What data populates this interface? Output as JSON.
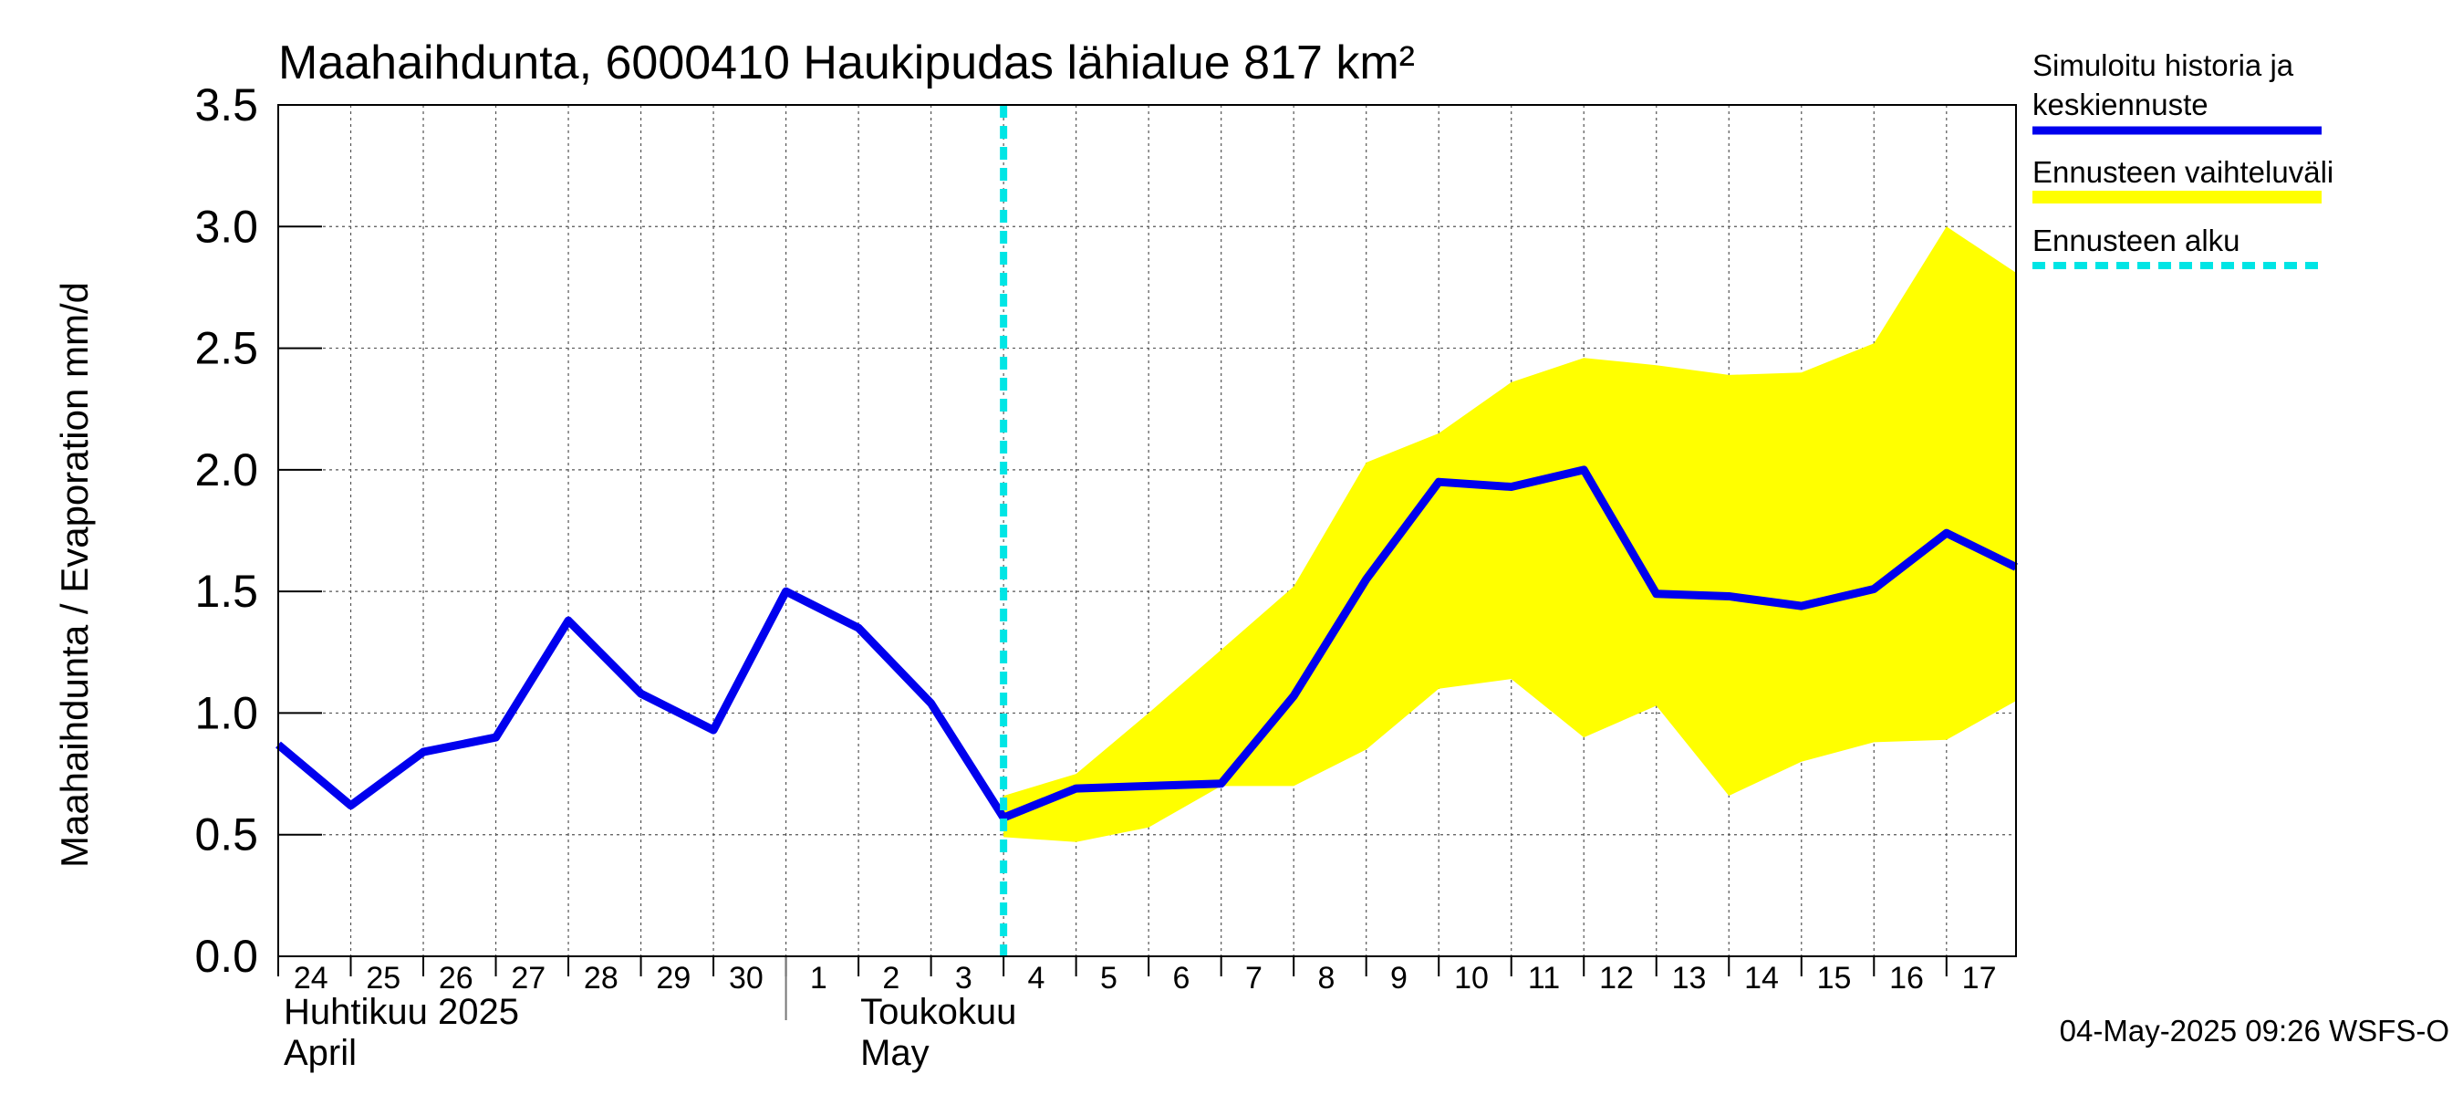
{
  "chart_data": {
    "type": "line",
    "title": "Maahaihdunta, 6000410 Haukipudas lähialue 817 km²",
    "ylabel": "Maahaihdunta / Evaporation   mm/d",
    "ylim": [
      0,
      3.5
    ],
    "yticks": [
      "0.0",
      "0.5",
      "1.0",
      "1.5",
      "2.0",
      "2.5",
      "3.0",
      "3.5"
    ],
    "grid": true,
    "legend_position": "right",
    "x_start": "2025-04-24",
    "x_end": "2025-05-17T23:00",
    "x_tick_labels": [
      "24",
      "25",
      "26",
      "27",
      "28",
      "29",
      "30",
      "1",
      "2",
      "3",
      "4",
      "5",
      "6",
      "7",
      "8",
      "9",
      "10",
      "11",
      "12",
      "13",
      "14",
      "15",
      "16",
      "17"
    ],
    "month_labels": [
      {
        "line1": "Huhtikuu  2025",
        "line2": "April"
      },
      {
        "line1": "Toukokuu",
        "line2": "May"
      }
    ],
    "forecast_start": "2025-05-04",
    "series": [
      {
        "name": "Simuloitu historia ja keskiennuste",
        "color": "#0000ee",
        "x": [
          "2025-04-24",
          "2025-04-25",
          "2025-04-26",
          "2025-04-27",
          "2025-04-28",
          "2025-04-29",
          "2025-04-30",
          "2025-05-01",
          "2025-05-02",
          "2025-05-03",
          "2025-05-04",
          "2025-05-05",
          "2025-05-06",
          "2025-05-07",
          "2025-05-08",
          "2025-05-09",
          "2025-05-10",
          "2025-05-11",
          "2025-05-12",
          "2025-05-13",
          "2025-05-14",
          "2025-05-15",
          "2025-05-16",
          "2025-05-17",
          "2025-05-17T23:00"
        ],
        "values": [
          0.87,
          0.62,
          0.84,
          0.9,
          1.38,
          1.08,
          0.93,
          1.5,
          1.35,
          1.04,
          0.57,
          0.69,
          0.7,
          0.71,
          1.07,
          1.55,
          1.95,
          1.93,
          2.0,
          1.49,
          1.48,
          1.44,
          1.51,
          1.74,
          1.6
        ]
      },
      {
        "name": "Ennusteen vaihteluväli",
        "color": "#ffff00",
        "x": [
          "2025-05-04",
          "2025-05-05",
          "2025-05-06",
          "2025-05-07",
          "2025-05-08",
          "2025-05-09",
          "2025-05-10",
          "2025-05-11",
          "2025-05-12",
          "2025-05-13",
          "2025-05-14",
          "2025-05-15",
          "2025-05-16",
          "2025-05-17",
          "2025-05-17T23:00"
        ],
        "upper": [
          0.66,
          0.75,
          1.0,
          1.26,
          1.52,
          2.03,
          2.15,
          2.36,
          2.46,
          2.43,
          2.39,
          2.4,
          2.52,
          3.0,
          2.81
        ],
        "lower": [
          0.49,
          0.47,
          0.53,
          0.7,
          0.7,
          0.85,
          1.1,
          1.14,
          0.9,
          1.03,
          0.66,
          0.8,
          0.88,
          0.89,
          1.05
        ]
      },
      {
        "name": "Ennusteen alku",
        "color": "#00e5e5"
      }
    ]
  },
  "footer": "04-May-2025 09:26 WSFS-O"
}
